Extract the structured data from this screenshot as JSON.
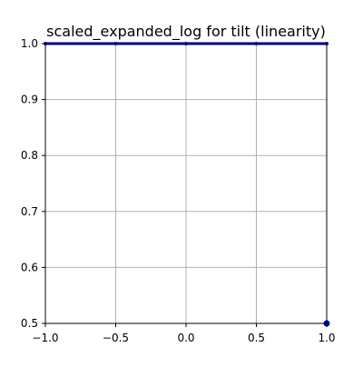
{
  "chart_data": {
    "type": "line",
    "title": "scaled_expanded_log for tilt (linearity)",
    "xlabel": "",
    "ylabel": "",
    "xlim": [
      -1.0,
      1.0
    ],
    "ylim": [
      0.5,
      1.0
    ],
    "grid": true,
    "legend": "none",
    "x_ticks": [
      {
        "value": -1.0,
        "label": "−1.0"
      },
      {
        "value": -0.5,
        "label": "−0.5"
      },
      {
        "value": 0.0,
        "label": "0.0"
      },
      {
        "value": 0.5,
        "label": "0.5"
      },
      {
        "value": 1.0,
        "label": "1.0"
      }
    ],
    "y_ticks": [
      {
        "value": 0.5,
        "label": "0.5"
      },
      {
        "value": 0.6,
        "label": "0.6"
      },
      {
        "value": 0.7,
        "label": "0.7"
      },
      {
        "value": 0.8,
        "label": "0.8"
      },
      {
        "value": 0.9,
        "label": "0.9"
      },
      {
        "value": 1.0,
        "label": "1.0"
      }
    ],
    "series": [
      {
        "color": "#0000cc",
        "x": [
          -1.0,
          -0.5,
          0.0,
          0.5,
          1.0
        ],
        "y": [
          1.0,
          1.0,
          1.0,
          1.0,
          1.0
        ]
      }
    ],
    "points": [
      {
        "x": 1.0,
        "y": 0.5,
        "color": "#0000cc"
      }
    ],
    "colors": {
      "grid": "#b0b0b0",
      "axes": "#000000",
      "series": "#0000cc"
    }
  }
}
